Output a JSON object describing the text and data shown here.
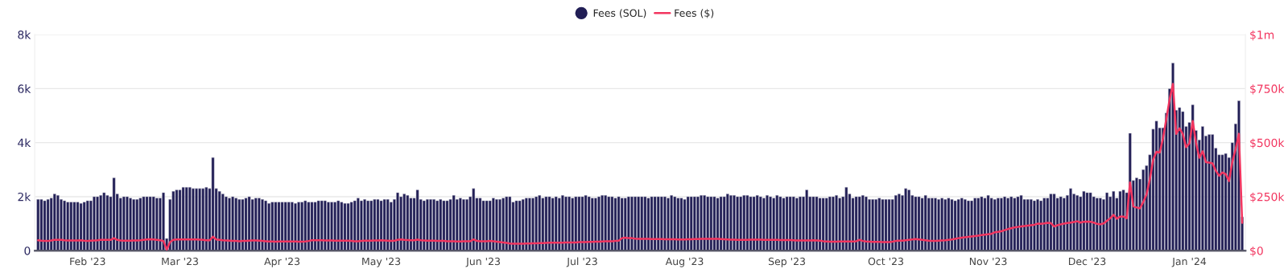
{
  "chart_data": {
    "type": "bar",
    "x": [
      "2023-01-17",
      "2023-01-18",
      "2023-01-19",
      "2023-01-20",
      "2023-01-21",
      "2023-01-22",
      "2023-01-23",
      "2023-01-24",
      "2023-01-25",
      "2023-01-26",
      "2023-01-27",
      "2023-01-28",
      "2023-01-29",
      "2023-01-30",
      "2023-01-31",
      "2023-02-01",
      "2023-02-02",
      "2023-02-03",
      "2023-02-04",
      "2023-02-05",
      "2023-02-06",
      "2023-02-07",
      "2023-02-08",
      "2023-02-09",
      "2023-02-10",
      "2023-02-11",
      "2023-02-12",
      "2023-02-13",
      "2023-02-14",
      "2023-02-15",
      "2023-02-16",
      "2023-02-17",
      "2023-02-18",
      "2023-02-19",
      "2023-02-20",
      "2023-02-21",
      "2023-02-22",
      "2023-02-23",
      "2023-02-24",
      "2023-02-25",
      "2023-02-26",
      "2023-02-27",
      "2023-02-28",
      "2023-03-01",
      "2023-03-02",
      "2023-03-03",
      "2023-03-04",
      "2023-03-05",
      "2023-03-06",
      "2023-03-07",
      "2023-03-08",
      "2023-03-09",
      "2023-03-10",
      "2023-03-11",
      "2023-03-12",
      "2023-03-13",
      "2023-03-14",
      "2023-03-15",
      "2023-03-16",
      "2023-03-17",
      "2023-03-18",
      "2023-03-19",
      "2023-03-20",
      "2023-03-21",
      "2023-03-22",
      "2023-03-23",
      "2023-03-24",
      "2023-03-25",
      "2023-03-26",
      "2023-03-27",
      "2023-03-28",
      "2023-03-29",
      "2023-03-30",
      "2023-03-31",
      "2023-04-01",
      "2023-04-02",
      "2023-04-03",
      "2023-04-04",
      "2023-04-05",
      "2023-04-06",
      "2023-04-07",
      "2023-04-08",
      "2023-04-09",
      "2023-04-10",
      "2023-04-11",
      "2023-04-12",
      "2023-04-13",
      "2023-04-14",
      "2023-04-15",
      "2023-04-16",
      "2023-04-17",
      "2023-04-18",
      "2023-04-19",
      "2023-04-20",
      "2023-04-21",
      "2023-04-22",
      "2023-04-23",
      "2023-04-24",
      "2023-04-25",
      "2023-04-26",
      "2023-04-27",
      "2023-04-28",
      "2023-04-29",
      "2023-04-30",
      "2023-05-01",
      "2023-05-02",
      "2023-05-03",
      "2023-05-04",
      "2023-05-05",
      "2023-05-06",
      "2023-05-07",
      "2023-05-08",
      "2023-05-09",
      "2023-05-10",
      "2023-05-11",
      "2023-05-12",
      "2023-05-13",
      "2023-05-14",
      "2023-05-15",
      "2023-05-16",
      "2023-05-17",
      "2023-05-18",
      "2023-05-19",
      "2023-05-20",
      "2023-05-21",
      "2023-05-22",
      "2023-05-23",
      "2023-05-24",
      "2023-05-25",
      "2023-05-26",
      "2023-05-27",
      "2023-05-28",
      "2023-05-29",
      "2023-05-30",
      "2023-05-31",
      "2023-06-01",
      "2023-06-02",
      "2023-06-03",
      "2023-06-04",
      "2023-06-05",
      "2023-06-06",
      "2023-06-07",
      "2023-06-08",
      "2023-06-09",
      "2023-06-10",
      "2023-06-11",
      "2023-06-12",
      "2023-06-13",
      "2023-06-14",
      "2023-06-15",
      "2023-06-16",
      "2023-06-17",
      "2023-06-18",
      "2023-06-19",
      "2023-06-20",
      "2023-06-21",
      "2023-06-22",
      "2023-06-23",
      "2023-06-24",
      "2023-06-25",
      "2023-06-26",
      "2023-06-27",
      "2023-06-28",
      "2023-06-29",
      "2023-06-30",
      "2023-07-01",
      "2023-07-02",
      "2023-07-03",
      "2023-07-04",
      "2023-07-05",
      "2023-07-06",
      "2023-07-07",
      "2023-07-08",
      "2023-07-09",
      "2023-07-10",
      "2023-07-11",
      "2023-07-12",
      "2023-07-13",
      "2023-07-14",
      "2023-07-15",
      "2023-07-16",
      "2023-07-17",
      "2023-07-18",
      "2023-07-19",
      "2023-07-20",
      "2023-07-21",
      "2023-07-22",
      "2023-07-23",
      "2023-07-24",
      "2023-07-25",
      "2023-07-26",
      "2023-07-27",
      "2023-07-28",
      "2023-07-29",
      "2023-07-30",
      "2023-07-31",
      "2023-08-01",
      "2023-08-02",
      "2023-08-03",
      "2023-08-04",
      "2023-08-05",
      "2023-08-06",
      "2023-08-07",
      "2023-08-08",
      "2023-08-09",
      "2023-08-10",
      "2023-08-11",
      "2023-08-12",
      "2023-08-13",
      "2023-08-14",
      "2023-08-15",
      "2023-08-16",
      "2023-08-17",
      "2023-08-18",
      "2023-08-19",
      "2023-08-20",
      "2023-08-21",
      "2023-08-22",
      "2023-08-23",
      "2023-08-24",
      "2023-08-25",
      "2023-08-26",
      "2023-08-27",
      "2023-08-28",
      "2023-08-29",
      "2023-08-30",
      "2023-08-31",
      "2023-09-01",
      "2023-09-02",
      "2023-09-03",
      "2023-09-04",
      "2023-09-05",
      "2023-09-06",
      "2023-09-07",
      "2023-09-08",
      "2023-09-09",
      "2023-09-10",
      "2023-09-11",
      "2023-09-12",
      "2023-09-13",
      "2023-09-14",
      "2023-09-15",
      "2023-09-16",
      "2023-09-17",
      "2023-09-18",
      "2023-09-19",
      "2023-09-20",
      "2023-09-21",
      "2023-09-22",
      "2023-09-23",
      "2023-09-24",
      "2023-09-25",
      "2023-09-26",
      "2023-09-27",
      "2023-09-28",
      "2023-09-29",
      "2023-09-30",
      "2023-10-01",
      "2023-10-02",
      "2023-10-03",
      "2023-10-04",
      "2023-10-05",
      "2023-10-06",
      "2023-10-07",
      "2023-10-08",
      "2023-10-09",
      "2023-10-10",
      "2023-10-11",
      "2023-10-12",
      "2023-10-13",
      "2023-10-14",
      "2023-10-15",
      "2023-10-16",
      "2023-10-17",
      "2023-10-18",
      "2023-10-19",
      "2023-10-20",
      "2023-10-21",
      "2023-10-22",
      "2023-10-23",
      "2023-10-24",
      "2023-10-25",
      "2023-10-26",
      "2023-10-27",
      "2023-10-28",
      "2023-10-29",
      "2023-10-30",
      "2023-10-31",
      "2023-11-01",
      "2023-11-02",
      "2023-11-03",
      "2023-11-04",
      "2023-11-05",
      "2023-11-06",
      "2023-11-07",
      "2023-11-08",
      "2023-11-09",
      "2023-11-10",
      "2023-11-11",
      "2023-11-12",
      "2023-11-13",
      "2023-11-14",
      "2023-11-15",
      "2023-11-16",
      "2023-11-17",
      "2023-11-18",
      "2023-11-19",
      "2023-11-20",
      "2023-11-21",
      "2023-11-22",
      "2023-11-23",
      "2023-11-24",
      "2023-11-25",
      "2023-11-26",
      "2023-11-27",
      "2023-11-28",
      "2023-11-29",
      "2023-11-30",
      "2023-12-01",
      "2023-12-02",
      "2023-12-03",
      "2023-12-04",
      "2023-12-05",
      "2023-12-06",
      "2023-12-07",
      "2023-12-08",
      "2023-12-09",
      "2023-12-10",
      "2023-12-11",
      "2023-12-12",
      "2023-12-13",
      "2023-12-14",
      "2023-12-15",
      "2023-12-16",
      "2023-12-17",
      "2023-12-18",
      "2023-12-19",
      "2023-12-20",
      "2023-12-21",
      "2023-12-22",
      "2023-12-23",
      "2023-12-24",
      "2023-12-25",
      "2023-12-26",
      "2023-12-27",
      "2023-12-28",
      "2023-12-29",
      "2023-12-30",
      "2023-12-31",
      "2024-01-01",
      "2024-01-02",
      "2024-01-03",
      "2024-01-04",
      "2024-01-05",
      "2024-01-06",
      "2024-01-07",
      "2024-01-08",
      "2024-01-09",
      "2024-01-10",
      "2024-01-11",
      "2024-01-12",
      "2024-01-13",
      "2024-01-14",
      "2024-01-15",
      "2024-01-16",
      "2024-01-17"
    ],
    "series": [
      {
        "name": "Fees (SOL)",
        "color": "#211e55",
        "values": [
          1900,
          1900,
          1850,
          1900,
          1950,
          2100,
          2050,
          1900,
          1850,
          1800,
          1800,
          1800,
          1800,
          1750,
          1800,
          1850,
          1850,
          2000,
          2000,
          2050,
          2150,
          2050,
          2000,
          2700,
          2100,
          1950,
          2000,
          2000,
          1950,
          1900,
          1900,
          1950,
          2000,
          2000,
          2000,
          2000,
          1950,
          1950,
          2150,
          450,
          1900,
          2200,
          2250,
          2250,
          2350,
          2350,
          2350,
          2300,
          2300,
          2300,
          2300,
          2350,
          2300,
          3450,
          2300,
          2200,
          2100,
          2000,
          1950,
          2000,
          1950,
          1900,
          1900,
          1950,
          2000,
          1900,
          1950,
          1950,
          1900,
          1850,
          1750,
          1800,
          1800,
          1800,
          1800,
          1800,
          1800,
          1800,
          1750,
          1800,
          1800,
          1850,
          1800,
          1800,
          1800,
          1850,
          1850,
          1850,
          1800,
          1800,
          1800,
          1850,
          1800,
          1750,
          1750,
          1800,
          1850,
          1950,
          1850,
          1900,
          1850,
          1850,
          1900,
          1900,
          1850,
          1900,
          1900,
          1800,
          1900,
          2150,
          2000,
          2100,
          2050,
          1950,
          1950,
          2250,
          1900,
          1850,
          1900,
          1900,
          1900,
          1850,
          1900,
          1850,
          1850,
          1900,
          2050,
          1900,
          1950,
          1900,
          1900,
          2000,
          2300,
          1950,
          1950,
          1850,
          1850,
          1850,
          1950,
          1900,
          1900,
          1950,
          2000,
          2000,
          1800,
          1850,
          1850,
          1900,
          1950,
          1950,
          1950,
          2000,
          2050,
          1950,
          2000,
          2000,
          1950,
          2000,
          1950,
          2050,
          2000,
          2000,
          1950,
          2000,
          2000,
          2000,
          2050,
          2000,
          1950,
          1950,
          2000,
          2050,
          2050,
          2000,
          2000,
          1950,
          2000,
          1950,
          1950,
          2000,
          2000,
          2000,
          2000,
          2000,
          2000,
          1950,
          2000,
          2000,
          2000,
          2000,
          2000,
          1950,
          2050,
          2000,
          1950,
          1950,
          1900,
          2000,
          2000,
          2000,
          2000,
          2050,
          2050,
          2000,
          2000,
          2000,
          1950,
          2000,
          2000,
          2100,
          2050,
          2050,
          2000,
          2000,
          2050,
          2050,
          2000,
          2000,
          2050,
          2000,
          1950,
          2050,
          2000,
          1950,
          2050,
          2000,
          1950,
          2000,
          2000,
          2000,
          1950,
          2000,
          2000,
          2250,
          2000,
          2000,
          2000,
          1950,
          1950,
          1950,
          2000,
          2000,
          2050,
          1950,
          2000,
          2350,
          2100,
          1950,
          2000,
          2000,
          2050,
          2000,
          1900,
          1900,
          1900,
          1950,
          1900,
          1900,
          1900,
          1900,
          2050,
          2100,
          2050,
          2300,
          2250,
          2050,
          2000,
          2000,
          1950,
          2050,
          1950,
          1950,
          1950,
          1900,
          1950,
          1900,
          1950,
          1900,
          1850,
          1900,
          1950,
          1900,
          1850,
          1850,
          1950,
          1950,
          2000,
          1950,
          2050,
          1950,
          1900,
          1950,
          1950,
          2000,
          1950,
          2000,
          1950,
          2000,
          2050,
          1900,
          1900,
          1900,
          1850,
          1900,
          1850,
          1950,
          1950,
          2100,
          2100,
          1950,
          2000,
          1950,
          2050,
          2300,
          2100,
          2050,
          2000,
          2200,
          2150,
          2150,
          2000,
          1950,
          1950,
          1900,
          2150,
          2000,
          2200,
          1950,
          2200,
          2250,
          2150,
          4350,
          2600,
          2700,
          2650,
          3000,
          3150,
          3550,
          4500,
          4800,
          4550,
          4550,
          5100,
          6000,
          6950,
          5200,
          5300,
          5150,
          4600,
          4750,
          5400,
          4450,
          4100,
          4600,
          4250,
          4300,
          4300,
          3800,
          3550,
          3550,
          3600,
          3450,
          4000,
          4700,
          5550,
          1250
        ]
      },
      {
        "name": "Fees ($)",
        "type": "line",
        "axis": "y2",
        "color": "#f2355f",
        "values": [
          48000,
          46000,
          45000,
          45000,
          47000,
          50000,
          50000,
          50000,
          48000,
          47000,
          47000,
          47000,
          47000,
          48000,
          46000,
          45000,
          46000,
          47000,
          48000,
          50000,
          50000,
          50000,
          50000,
          58000,
          50000,
          47000,
          46000,
          46000,
          46000,
          47000,
          47000,
          48000,
          50000,
          52000,
          53000,
          52000,
          50000,
          48000,
          45000,
          5000,
          40000,
          50000,
          52000,
          52000,
          52000,
          52000,
          52000,
          52000,
          52000,
          51000,
          50000,
          48000,
          48000,
          65000,
          52000,
          50000,
          48000,
          47000,
          46000,
          45000,
          45000,
          44000,
          45000,
          45000,
          46000,
          47000,
          47000,
          46000,
          45000,
          44000,
          43000,
          43000,
          42000,
          43000,
          43000,
          43000,
          43000,
          43000,
          43000,
          42000,
          42000,
          43000,
          45000,
          48000,
          48000,
          48000,
          48000,
          47000,
          47000,
          47000,
          46000,
          46000,
          46000,
          46000,
          46000,
          45000,
          44000,
          44000,
          45000,
          46000,
          46000,
          46000,
          47000,
          47000,
          48000,
          47000,
          46000,
          45000,
          46000,
          50000,
          52000,
          50000,
          49000,
          48000,
          48000,
          51000,
          48000,
          47000,
          46000,
          46000,
          46000,
          45000,
          45000,
          45000,
          44000,
          44000,
          44000,
          43000,
          43000,
          44000,
          44000,
          44000,
          52000,
          45000,
          44000,
          44000,
          44000,
          45000,
          44000,
          42000,
          40000,
          38000,
          36000,
          33000,
          32000,
          32000,
          32000,
          32000,
          33000,
          33000,
          34000,
          34000,
          35000,
          35000,
          36000,
          37000,
          37000,
          37000,
          37000,
          37000,
          38000,
          38000,
          38000,
          38000,
          40000,
          40000,
          40000,
          41000,
          41000,
          42000,
          42000,
          43000,
          44000,
          44000,
          44000,
          45000,
          46000,
          58000,
          60000,
          58000,
          58000,
          56000,
          55000,
          55000,
          55000,
          55000,
          54000,
          54000,
          54000,
          54000,
          53000,
          53000,
          53000,
          53000,
          52000,
          52000,
          52000,
          53000,
          53000,
          54000,
          54000,
          55000,
          55000,
          55000,
          55000,
          55000,
          55000,
          54000,
          53000,
          52000,
          51000,
          51000,
          50000,
          50000,
          50000,
          50000,
          51000,
          51000,
          51000,
          51000,
          50000,
          50000,
          50000,
          50000,
          50000,
          49000,
          49000,
          49000,
          49000,
          48000,
          47000,
          47000,
          47000,
          47000,
          47000,
          48000,
          47000,
          46000,
          44000,
          43000,
          42000,
          42000,
          42000,
          43000,
          43000,
          43000,
          43000,
          43000,
          44000,
          50000,
          45000,
          43000,
          42000,
          41000,
          41000,
          41000,
          40000,
          40000,
          40000,
          42000,
          45000,
          46000,
          46000,
          48000,
          50000,
          52000,
          54000,
          52000,
          50000,
          48000,
          46000,
          45000,
          45000,
          46000,
          47000,
          48000,
          50000,
          52000,
          55000,
          58000,
          60000,
          62000,
          64000,
          66000,
          68000,
          70000,
          72000,
          74000,
          76000,
          78000,
          85000,
          87000,
          90000,
          95000,
          100000,
          104000,
          108000,
          110000,
          112000,
          114000,
          116000,
          118000,
          120000,
          125000,
          124000,
          126000,
          129000,
          128000,
          112000,
          118000,
          122000,
          125000,
          128000,
          130000,
          133000,
          136000,
          130000,
          134000,
          135000,
          134000,
          130000,
          124000,
          122000,
          126000,
          138000,
          150000,
          166000,
          148000,
          158000,
          158000,
          150000,
          316000,
          205000,
          200000,
          196000,
          225000,
          260000,
          330000,
          420000,
          458000,
          454000,
          520000,
          610000,
          700000,
          772000,
          541000,
          566000,
          540000,
          479000,
          497000,
          600000,
          500000,
          430000,
          460000,
          410000,
          408000,
          404000,
          370000,
          347000,
          362000,
          354000,
          322000,
          410000,
          470000,
          541000,
          129000
        ]
      }
    ],
    "xlim": [
      "2023-01-16",
      "2024-01-18"
    ],
    "xticks": [
      {
        "value": "2023-02-01",
        "label": "Feb '23"
      },
      {
        "value": "2023-03-01",
        "label": "Mar '23"
      },
      {
        "value": "2023-04-01",
        "label": "Apr '23"
      },
      {
        "value": "2023-05-01",
        "label": "May '23"
      },
      {
        "value": "2023-06-01",
        "label": "Jun '23"
      },
      {
        "value": "2023-07-01",
        "label": "Jul '23"
      },
      {
        "value": "2023-08-01",
        "label": "Aug '23"
      },
      {
        "value": "2023-09-01",
        "label": "Sep '23"
      },
      {
        "value": "2023-10-01",
        "label": "Oct '23"
      },
      {
        "value": "2023-11-01",
        "label": "Nov '23"
      },
      {
        "value": "2023-12-01",
        "label": "Dec '23"
      },
      {
        "value": "2024-01-01",
        "label": "Jan '24"
      }
    ],
    "ylim": [
      0,
      8000
    ],
    "yticks": [
      0,
      {
        "value": 2000,
        "label": "2k"
      },
      {
        "value": 4000,
        "label": "4k"
      },
      {
        "value": 6000,
        "label": "6k"
      },
      {
        "value": 8000,
        "label": "8k"
      }
    ],
    "y2lim": [
      0,
      1000000
    ],
    "y2ticks": [
      {
        "value": 0,
        "label": "$0"
      },
      {
        "value": 250000,
        "label": "$250k"
      },
      {
        "value": 500000,
        "label": "$500k"
      },
      {
        "value": 750000,
        "label": "$750k"
      },
      {
        "value": 1000000,
        "label": "$1m"
      }
    ],
    "grid": "y",
    "legend": "top"
  }
}
